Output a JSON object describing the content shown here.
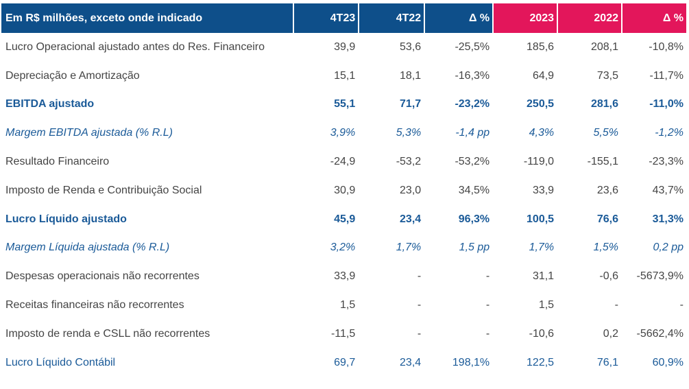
{
  "header": {
    "title": "Em R$ milhões, exceto onde indicado",
    "columns": [
      "4T23",
      "4T22",
      "Δ %",
      "2023",
      "2022",
      "Δ %"
    ]
  },
  "rows": [
    {
      "label": "Lucro Operacional ajustado antes do Res. Financeiro",
      "values": [
        "39,9",
        "53,6",
        "-25,5%",
        "185,6",
        "208,1",
        "-10,8%"
      ],
      "style": "normal"
    },
    {
      "label": "Depreciação e Amortização",
      "values": [
        "15,1",
        "18,1",
        "-16,3%",
        "64,9",
        "73,5",
        "-11,7%"
      ],
      "style": "normal"
    },
    {
      "label": "EBITDA ajustado",
      "values": [
        "55,1",
        "71,7",
        "-23,2%",
        "250,5",
        "281,6",
        "-11,0%"
      ],
      "style": "highlight"
    },
    {
      "label": "Margem EBITDA ajustada (% R.L)",
      "values": [
        "3,9%",
        "5,3%",
        "-1,4 pp",
        "4,3%",
        "5,5%",
        "-1,2%"
      ],
      "style": "italic"
    },
    {
      "label": "Resultado Financeiro",
      "values": [
        "-24,9",
        "-53,2",
        "-53,2%",
        "-119,0",
        "-155,1",
        "-23,3%"
      ],
      "style": "normal"
    },
    {
      "label": "Imposto de Renda e Contribuição Social",
      "values": [
        "30,9",
        "23,0",
        "34,5%",
        "33,9",
        "23,6",
        "43,7%"
      ],
      "style": "normal"
    },
    {
      "label": "Lucro Líquido ajustado",
      "values": [
        "45,9",
        "23,4",
        "96,3%",
        "100,5",
        "76,6",
        "31,3%"
      ],
      "style": "highlight"
    },
    {
      "label": "Margem Líquida ajustada (% R.L)",
      "values": [
        "3,2%",
        "1,7%",
        "1,5 pp",
        "1,7%",
        "1,5%",
        "0,2 pp"
      ],
      "style": "italic"
    },
    {
      "label": "Despesas operacionais não recorrentes",
      "values": [
        "33,9",
        "-",
        "-",
        "31,1",
        "-0,6",
        "-5673,9%"
      ],
      "style": "normal"
    },
    {
      "label": "Receitas financeiras não recorrentes",
      "values": [
        "1,5",
        "-",
        "-",
        "1,5",
        "-",
        "-"
      ],
      "style": "normal"
    },
    {
      "label": "Imposto de renda e CSLL não recorrentes",
      "values": [
        "-11,5",
        "-",
        "-",
        "-10,6",
        "0,2",
        "-5662,4%"
      ],
      "style": "normal"
    },
    {
      "label": "Lucro Líquido Contábil",
      "values": [
        "69,7",
        "23,4",
        "198,1%",
        "122,5",
        "76,1",
        "60,9%"
      ],
      "style": "contabil"
    }
  ],
  "colors": {
    "header_quarter": "#0e4f8a",
    "header_year": "#e3165b",
    "highlight_text": "#1a5a98",
    "body_text": "#444444"
  }
}
